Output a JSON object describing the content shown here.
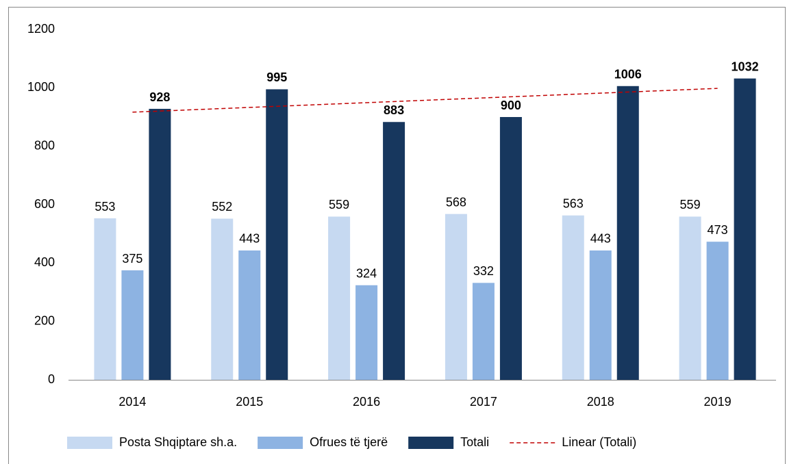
{
  "chart_data": {
    "type": "bar",
    "categories": [
      "2014",
      "2015",
      "2016",
      "2017",
      "2018",
      "2019"
    ],
    "series": [
      {
        "name": "Posta Shqiptare sh.a.",
        "color": "#c6d9f1",
        "values": [
          553,
          552,
          559,
          568,
          563,
          559
        ]
      },
      {
        "name": "Ofrues të tjerë",
        "color": "#8db3e2",
        "values": [
          375,
          443,
          324,
          332,
          443,
          473
        ]
      },
      {
        "name": "Totali",
        "color": "#17375e",
        "values": [
          928,
          995,
          883,
          900,
          1006,
          1032
        ]
      }
    ],
    "trendline": {
      "name": "Linear (Totali)",
      "color": "#c00000"
    },
    "ylim": [
      0,
      1200
    ],
    "yticks": [
      0,
      200,
      400,
      600,
      800,
      1000,
      1200
    ],
    "grid": false
  }
}
